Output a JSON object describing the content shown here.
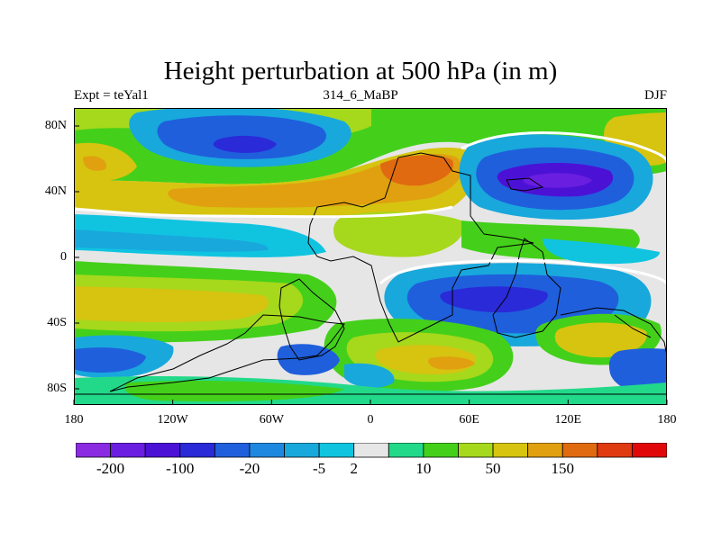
{
  "title": "Height perturbation at 500 hPa (in m)",
  "subtitle_left": "Expt = teYal1",
  "subtitle_center": "314_6_MaBP",
  "subtitle_right": "DJF",
  "map": {
    "y_ticks": [
      "80N",
      "40N",
      "0",
      "40S",
      "80S"
    ],
    "x_ticks": [
      "180",
      "120W",
      "60W",
      "0",
      "60E",
      "120E",
      "180"
    ]
  },
  "colorbar": {
    "colors": [
      "#8a2be2",
      "#6a1ee0",
      "#4b12d6",
      "#2a2ad8",
      "#1f5fdc",
      "#1e88e0",
      "#18a8dc",
      "#10c4e0",
      "#e6e6e6",
      "#22d98a",
      "#44d01a",
      "#a6d81c",
      "#d6c410",
      "#e0a010",
      "#e06a10",
      "#e03a10",
      "#e00808"
    ],
    "labels": [
      "-200",
      "-100",
      "-20",
      "-5",
      "2",
      "10",
      "50",
      "150"
    ],
    "label_after_box": [
      1,
      3,
      5,
      7,
      8,
      10,
      12,
      14
    ]
  },
  "colors": {
    "land_outline": "#000000",
    "frame": "#000000"
  }
}
